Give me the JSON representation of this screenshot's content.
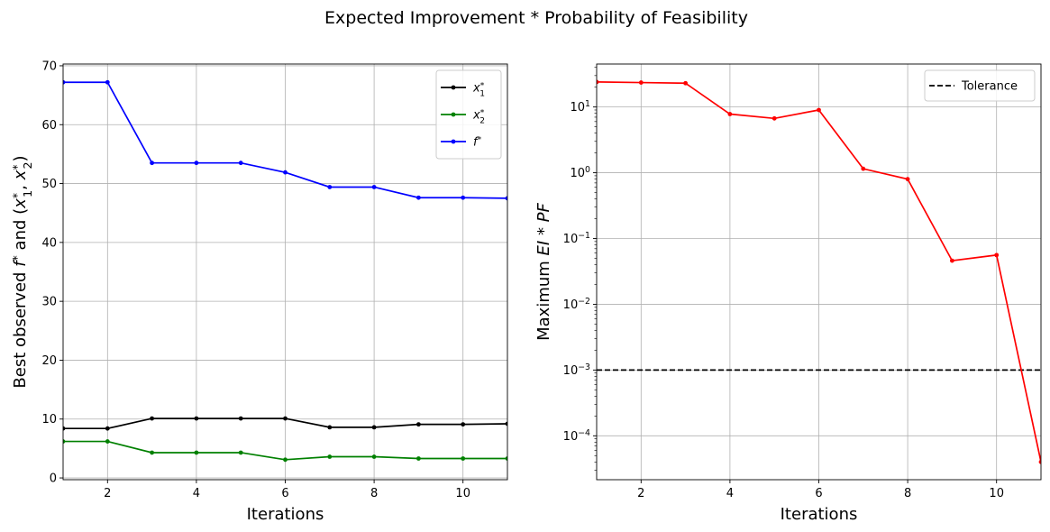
{
  "figure": {
    "title": "Expected Improvement * Probability of Feasibility"
  },
  "chart_data": [
    {
      "type": "line",
      "title": "",
      "xlabel": "Iterations",
      "ylabel": "Best observed f* and (x1*, x2*)",
      "xlim": [
        1,
        11
      ],
      "ylim": [
        -0.3,
        70.3
      ],
      "xticks": [
        2,
        4,
        6,
        8,
        10
      ],
      "yticks": [
        0,
        10,
        20,
        30,
        40,
        50,
        60,
        70
      ],
      "grid": true,
      "legend": "top-right",
      "x": [
        1,
        2,
        3,
        4,
        5,
        6,
        7,
        8,
        9,
        10,
        11
      ],
      "series": [
        {
          "name": "x1*",
          "color": "#000000",
          "values": [
            8.4,
            8.4,
            10.1,
            10.1,
            10.1,
            10.1,
            8.6,
            8.6,
            9.1,
            9.1,
            9.2
          ]
        },
        {
          "name": "x2*",
          "color": "#008000",
          "values": [
            6.2,
            6.2,
            4.3,
            4.3,
            4.3,
            3.1,
            3.6,
            3.6,
            3.3,
            3.3,
            3.3
          ]
        },
        {
          "name": "f*",
          "color": "#0000ff",
          "values": [
            67.2,
            67.2,
            53.5,
            53.5,
            53.5,
            51.9,
            49.4,
            49.4,
            47.6,
            47.6,
            47.5
          ]
        }
      ]
    },
    {
      "type": "line",
      "title": "",
      "xlabel": "Iterations",
      "ylabel": "Maximum EI * PF",
      "yscale": "log",
      "xlim": [
        1,
        11
      ],
      "ylim": [
        2.15e-05,
        45
      ],
      "xticks": [
        2,
        4,
        6,
        8,
        10
      ],
      "yticks": [
        {
          "value": 0.0001,
          "base": "10",
          "exp": "−4"
        },
        {
          "value": 0.001,
          "base": "10",
          "exp": "−3"
        },
        {
          "value": 0.01,
          "base": "10",
          "exp": "−2"
        },
        {
          "value": 0.1,
          "base": "10",
          "exp": "−1"
        },
        {
          "value": 1,
          "base": "10",
          "exp": "0"
        },
        {
          "value": 10,
          "base": "10",
          "exp": "1"
        }
      ],
      "grid": true,
      "legend": "top-right",
      "x": [
        1,
        2,
        3,
        4,
        5,
        6,
        7,
        8,
        9,
        10,
        11
      ],
      "series": [
        {
          "name": "",
          "color": "#ff0000",
          "values": [
            24,
            23.5,
            23,
            7.8,
            6.7,
            9.0,
            1.15,
            0.8,
            0.046,
            0.056,
            4e-05
          ]
        }
      ],
      "hlines": [
        {
          "name": "Tolerance",
          "value": 0.001,
          "color": "#000000",
          "style": "dashed"
        }
      ]
    }
  ]
}
